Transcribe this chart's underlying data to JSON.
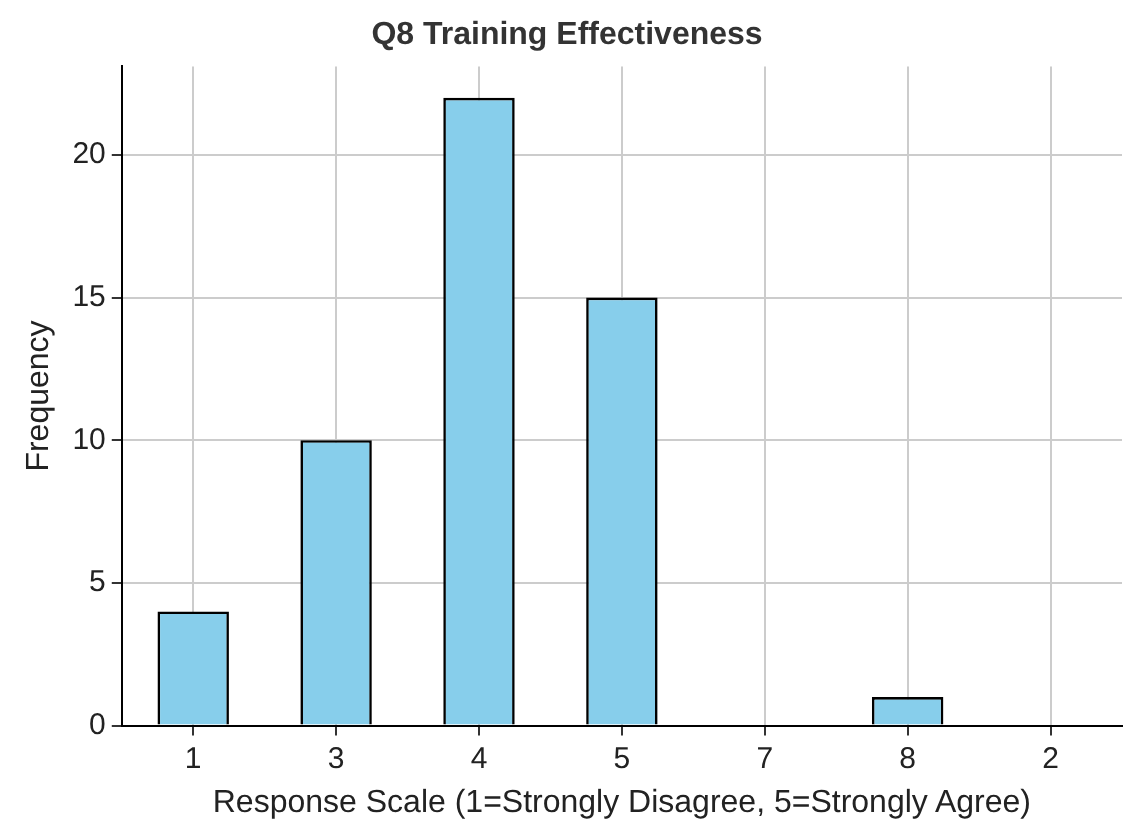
{
  "chart_data": {
    "type": "bar",
    "title": "Q8 Training Effectiveness",
    "xlabel": "Response Scale (1=Strongly Disagree, 5=Strongly Agree)",
    "ylabel": "Frequency",
    "categories": [
      "1",
      "3",
      "4",
      "5",
      "7",
      "8",
      "2"
    ],
    "values": [
      4,
      10,
      22,
      15,
      0,
      1,
      0
    ],
    "color": "#87ceeb",
    "ylim": [
      0,
      23.1
    ],
    "yticks": [
      0,
      5,
      10,
      15,
      20
    ],
    "grid": true,
    "legend": false
  }
}
